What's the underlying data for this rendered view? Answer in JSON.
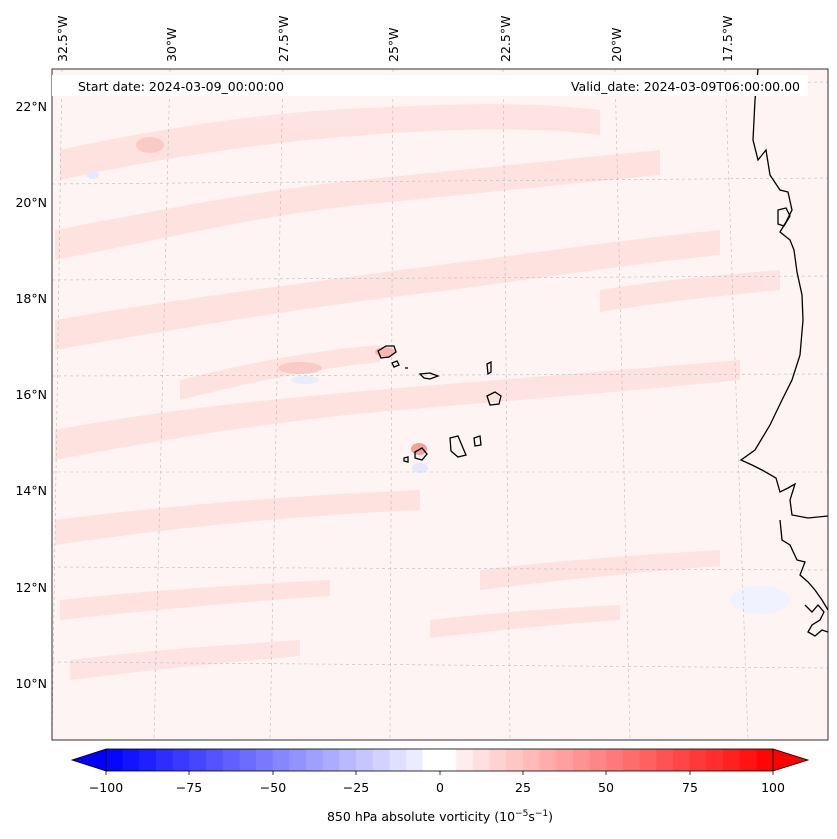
{
  "header": {
    "start_date": "Start date: 2024-03-09_00:00:00",
    "valid_date": "Valid_date: 2024-03-09T06:00:00.00"
  },
  "map": {
    "longitude_labels": [
      "32.5°W",
      "30°W",
      "27.5°W",
      "25°W",
      "22.5°W",
      "20°W",
      "17.5°W"
    ],
    "latitude_labels": [
      "22°N",
      "20°N",
      "18°N",
      "16°N",
      "14°N",
      "12°N",
      "10°N"
    ],
    "field": "850 hPa absolute vorticity"
  },
  "colorbar": {
    "ticks": [
      "−100",
      "−75",
      "−50",
      "−25",
      "0",
      "25",
      "50",
      "75",
      "100"
    ],
    "label": "850 hPa absolute vorticity (10",
    "unit_exp1": "−5",
    "unit_mid": "s",
    "unit_exp2": "−1",
    "unit_close": ")",
    "range": [
      -100,
      100
    ],
    "negative_color": "#0000ff",
    "zero_color": "#ffffff",
    "positive_color": "#ff0000"
  }
}
